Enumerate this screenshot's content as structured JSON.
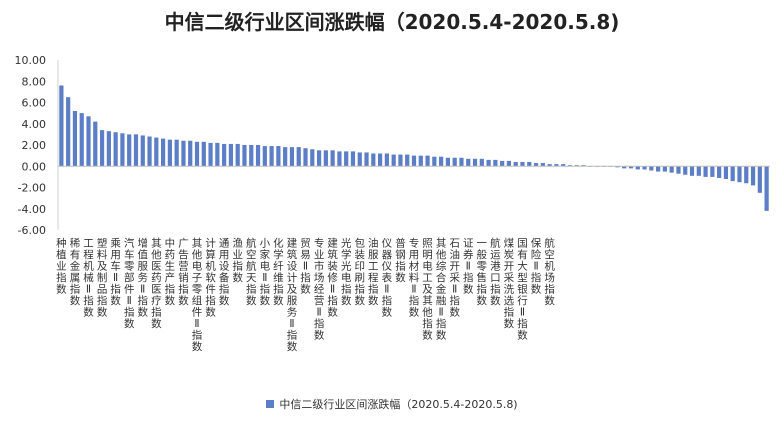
{
  "chart_data": {
    "type": "bar",
    "title": "中信二级行业区间涨跌幅（2020.5.4-2020.5.8)",
    "xlabel": "",
    "ylabel": "",
    "ylim": [
      -6,
      10
    ],
    "yticks": [
      "10.00",
      "8.00",
      "6.00",
      "4.00",
      "2.00",
      "0.00",
      "-2.00",
      "-4.00",
      "-6.00"
    ],
    "ytick_values": [
      10,
      8,
      6,
      4,
      2,
      0,
      -2,
      -4,
      -6
    ],
    "grid": false,
    "legend_position": "bottom",
    "bar_color": "#5b7ec6",
    "series": [
      {
        "name": "中信二级行业区间涨跌幅（2020.5.4-2020.5.8)",
        "values": [
          7.6,
          6.5,
          5.2,
          5.0,
          4.7,
          4.2,
          3.4,
          3.3,
          3.2,
          3.1,
          3.0,
          3.0,
          2.9,
          2.8,
          2.7,
          2.6,
          2.5,
          2.5,
          2.4,
          2.4,
          2.3,
          2.3,
          2.2,
          2.2,
          2.1,
          2.1,
          2.1,
          2.0,
          2.0,
          2.0,
          1.9,
          1.9,
          1.9,
          1.8,
          1.8,
          1.8,
          1.7,
          1.6,
          1.5,
          1.5,
          1.5,
          1.4,
          1.4,
          1.4,
          1.3,
          1.3,
          1.2,
          1.2,
          1.2,
          1.1,
          1.1,
          1.1,
          1.0,
          1.0,
          1.0,
          0.9,
          0.9,
          0.8,
          0.8,
          0.8,
          0.7,
          0.7,
          0.7,
          0.6,
          0.6,
          0.5,
          0.5,
          0.4,
          0.4,
          0.4,
          0.3,
          0.3,
          0.2,
          0.2,
          0.2,
          0.1,
          0.1,
          0.1,
          0.0,
          0.0,
          0.0,
          0.0,
          -0.1,
          -0.2,
          -0.2,
          -0.3,
          -0.3,
          -0.4,
          -0.5,
          -0.5,
          -0.6,
          -0.7,
          -0.8,
          -0.9,
          -0.9,
          -1.0,
          -1.0,
          -1.1,
          -1.2,
          -1.4,
          -1.5,
          -1.6,
          -1.8,
          -2.5,
          -4.2
        ]
      }
    ],
    "category_labels": [
      {
        "index": 0,
        "text": "种植业指数"
      },
      {
        "index": 2,
        "text": "稀有金属指数"
      },
      {
        "index": 4,
        "text": "工程机械Ⅱ指数"
      },
      {
        "index": 6,
        "text": "塑料及制品指数"
      },
      {
        "index": 8,
        "text": "乘用车Ⅱ指数"
      },
      {
        "index": 10,
        "text": "汽车零部件Ⅱ指数"
      },
      {
        "index": 12,
        "text": "增值服务Ⅱ指数"
      },
      {
        "index": 14,
        "text": "其他医药医疗指数"
      },
      {
        "index": 16,
        "text": "中药生产指数"
      },
      {
        "index": 18,
        "text": "广告营销指数"
      },
      {
        "index": 20,
        "text": "其他电子零组件Ⅱ指数"
      },
      {
        "index": 22,
        "text": "计算机软件指数"
      },
      {
        "index": 24,
        "text": "通用设备指数"
      },
      {
        "index": 26,
        "text": "渔业指数"
      },
      {
        "index": 28,
        "text": "航空航天指数"
      },
      {
        "index": 30,
        "text": "小家电Ⅱ指数"
      },
      {
        "index": 32,
        "text": "化学纤维指数"
      },
      {
        "index": 34,
        "text": "建筑设计及服务Ⅱ指数"
      },
      {
        "index": 36,
        "text": "贸易Ⅱ指数"
      },
      {
        "index": 38,
        "text": "专业市场经营Ⅱ指数"
      },
      {
        "index": 40,
        "text": "建筑装修Ⅱ指数"
      },
      {
        "index": 42,
        "text": "光学光电指数"
      },
      {
        "index": 44,
        "text": "包装印刷指数"
      },
      {
        "index": 46,
        "text": "油服工程指数"
      },
      {
        "index": 48,
        "text": "仪器仪表Ⅱ指数"
      },
      {
        "index": 50,
        "text": "普钢指数"
      },
      {
        "index": 52,
        "text": "专用材料Ⅱ指数"
      },
      {
        "index": 54,
        "text": "照明电工及其他指数"
      },
      {
        "index": 56,
        "text": "其他综合金融Ⅱ指数"
      },
      {
        "index": 58,
        "text": "石油开采Ⅱ指数"
      },
      {
        "index": 60,
        "text": "证券Ⅱ指数"
      },
      {
        "index": 62,
        "text": "一般零售指数"
      },
      {
        "index": 64,
        "text": "航运港口指数"
      },
      {
        "index": 66,
        "text": "煤炭开采洗选指数"
      },
      {
        "index": 68,
        "text": "国有大型银行Ⅱ指数"
      },
      {
        "index": 70,
        "text": "保险Ⅱ指数"
      },
      {
        "index": 72,
        "text": "航空机场指数"
      }
    ]
  }
}
